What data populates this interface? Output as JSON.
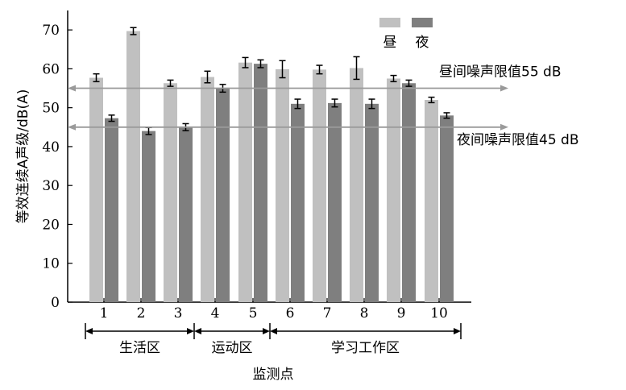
{
  "chart_data": {
    "type": "bar",
    "categories": [
      "1",
      "2",
      "3",
      "4",
      "5",
      "6",
      "7",
      "8",
      "9",
      "10"
    ],
    "series": [
      {
        "name": "昼",
        "color": "#c0c0c0",
        "values": [
          57.7,
          69.7,
          56.3,
          57.9,
          61.6,
          59.9,
          59.8,
          60.2,
          57.5,
          52.0
        ],
        "errors": [
          1.0,
          0.9,
          0.8,
          1.5,
          1.3,
          2.2,
          1.1,
          2.9,
          0.8,
          0.7
        ]
      },
      {
        "name": "夜",
        "color": "#7f7f7f",
        "values": [
          47.3,
          44.0,
          45.0,
          55.0,
          61.3,
          51.0,
          51.2,
          51.0,
          56.3,
          48.0
        ],
        "errors": [
          0.8,
          0.9,
          0.9,
          1.0,
          1.0,
          1.2,
          1.0,
          1.2,
          0.8,
          0.7
        ]
      }
    ],
    "ylabel": "等效连续A声级/dB(A)",
    "xlabel": "监测点",
    "ylim": [
      0,
      75
    ],
    "yticks": [
      0,
      10,
      20,
      30,
      40,
      50,
      60,
      70
    ],
    "reference_lines": [
      {
        "label": "昼间噪声限值55 dB",
        "value": 55
      },
      {
        "label": "夜间噪声限值45 dB",
        "value": 45
      }
    ],
    "zones": [
      {
        "label": "生活区",
        "from": "1",
        "to": "3"
      },
      {
        "label": "运动区",
        "from": "4",
        "to": "5"
      },
      {
        "label": "学习工作区",
        "from": "6",
        "to": "10"
      }
    ],
    "legend_position": "top-right",
    "grid": false
  }
}
